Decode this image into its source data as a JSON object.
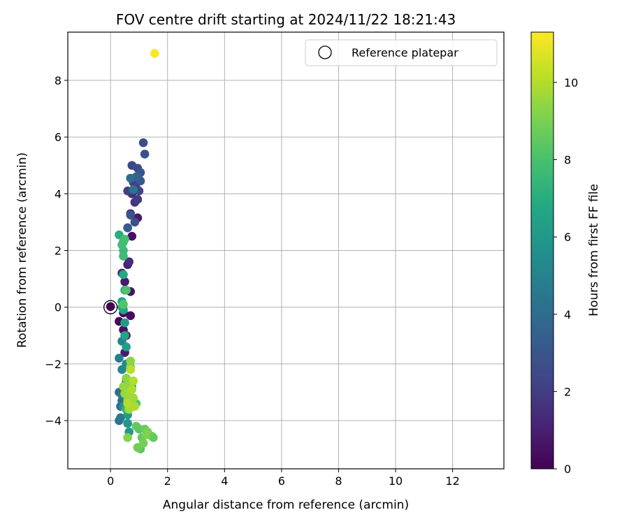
{
  "chart_data": {
    "type": "scatter",
    "title": "FOV centre drift starting at 2024/11/22 18:21:43",
    "xlabel": "Angular distance from reference (arcmin)",
    "ylabel": "Rotation from reference (arcmin)",
    "xlim": [
      -1.5,
      13.8
    ],
    "ylim": [
      -5.7,
      9.7
    ],
    "xticks": [
      0,
      2,
      4,
      6,
      8,
      10,
      12
    ],
    "yticks": [
      -4,
      -2,
      0,
      2,
      4,
      6,
      8
    ],
    "grid": true,
    "legend": {
      "position": "top-right",
      "entries": [
        "Reference platepar"
      ]
    },
    "colorbar": {
      "label": "Hours from first FF file",
      "colormap": "viridis",
      "range": [
        0,
        11.3
      ],
      "ticks": [
        0,
        2,
        4,
        6,
        8,
        10
      ]
    },
    "reference_point": {
      "x": 0,
      "y": 0
    },
    "points": [
      {
        "x": 0.0,
        "y": 0.02,
        "c": 0.0
      },
      {
        "x": 0.3,
        "y": -0.5,
        "c": 0.3
      },
      {
        "x": 0.45,
        "y": -0.8,
        "c": 0.5
      },
      {
        "x": 0.55,
        "y": -1.0,
        "c": 0.7
      },
      {
        "x": 0.5,
        "y": -1.6,
        "c": 0.9
      },
      {
        "x": 0.7,
        "y": -0.3,
        "c": 0.4
      },
      {
        "x": 0.7,
        "y": 0.55,
        "c": 0.6
      },
      {
        "x": 0.5,
        "y": 0.9,
        "c": 0.8
      },
      {
        "x": 0.45,
        "y": -0.2,
        "c": 0.2
      },
      {
        "x": 0.75,
        "y": 2.5,
        "c": 0.5
      },
      {
        "x": 0.95,
        "y": 3.15,
        "c": 0.8
      },
      {
        "x": 0.6,
        "y": 1.5,
        "c": 1.0
      },
      {
        "x": 0.4,
        "y": 1.2,
        "c": 1.2
      },
      {
        "x": 0.65,
        "y": 1.6,
        "c": 1.4
      },
      {
        "x": 0.6,
        "y": 2.8,
        "c": 1.3
      },
      {
        "x": 0.7,
        "y": 3.3,
        "c": 1.5
      },
      {
        "x": 0.75,
        "y": 4.0,
        "c": 1.6
      },
      {
        "x": 0.85,
        "y": 3.7,
        "c": 1.7
      },
      {
        "x": 0.9,
        "y": 4.2,
        "c": 1.8
      },
      {
        "x": 0.95,
        "y": 3.8,
        "c": 1.9
      },
      {
        "x": 1.0,
        "y": 4.5,
        "c": 2.0
      },
      {
        "x": 0.6,
        "y": 4.1,
        "c": 2.1
      },
      {
        "x": 0.8,
        "y": 4.4,
        "c": 2.2
      },
      {
        "x": 1.0,
        "y": 4.1,
        "c": 2.3
      },
      {
        "x": 0.75,
        "y": 5.0,
        "c": 2.4
      },
      {
        "x": 0.95,
        "y": 4.9,
        "c": 2.5
      },
      {
        "x": 1.15,
        "y": 5.8,
        "c": 2.6
      },
      {
        "x": 1.2,
        "y": 5.4,
        "c": 2.8
      },
      {
        "x": 1.05,
        "y": 4.75,
        "c": 2.9
      },
      {
        "x": 1.05,
        "y": 4.45,
        "c": 3.2
      },
      {
        "x": 0.7,
        "y": 3.25,
        "c": 3.0
      },
      {
        "x": 0.6,
        "y": 2.8,
        "c": 3.3
      },
      {
        "x": 0.85,
        "y": 3.0,
        "c": 2.7
      },
      {
        "x": 0.9,
        "y": 4.6,
        "c": 3.5
      },
      {
        "x": 0.7,
        "y": 4.55,
        "c": 4.0
      },
      {
        "x": 0.8,
        "y": 4.15,
        "c": 4.3
      },
      {
        "x": 0.35,
        "y": -3.5,
        "c": 3.8
      },
      {
        "x": 0.3,
        "y": -3.0,
        "c": 4.0
      },
      {
        "x": 0.4,
        "y": -3.3,
        "c": 4.1
      },
      {
        "x": 0.3,
        "y": -4.0,
        "c": 4.3
      },
      {
        "x": 0.35,
        "y": -3.9,
        "c": 4.5
      },
      {
        "x": 0.4,
        "y": -3.1,
        "c": 4.6
      },
      {
        "x": 0.3,
        "y": -1.8,
        "c": 4.8
      },
      {
        "x": 0.4,
        "y": -1.2,
        "c": 5.0
      },
      {
        "x": 0.4,
        "y": -2.2,
        "c": 5.2
      },
      {
        "x": 0.55,
        "y": -2.0,
        "c": 5.4
      },
      {
        "x": 0.55,
        "y": -2.6,
        "c": 5.5
      },
      {
        "x": 0.5,
        "y": -2.8,
        "c": 5.6
      },
      {
        "x": 0.45,
        "y": -3.5,
        "c": 5.7
      },
      {
        "x": 0.6,
        "y": -4.1,
        "c": 5.9
      },
      {
        "x": 0.65,
        "y": -4.4,
        "c": 6.0
      },
      {
        "x": 0.6,
        "y": -3.8,
        "c": 6.1
      },
      {
        "x": 0.5,
        "y": -0.55,
        "c": 6.2
      },
      {
        "x": 0.55,
        "y": -1.4,
        "c": 6.3
      },
      {
        "x": 0.45,
        "y": -0.1,
        "c": 6.4
      },
      {
        "x": 0.5,
        "y": -1.0,
        "c": 6.5
      },
      {
        "x": 0.5,
        "y": 0.6,
        "c": 6.6
      },
      {
        "x": 0.4,
        "y": 0.2,
        "c": 6.7
      },
      {
        "x": 0.45,
        "y": 1.15,
        "c": 6.8
      },
      {
        "x": 0.4,
        "y": 0.0,
        "c": 6.9
      },
      {
        "x": 0.3,
        "y": 2.55,
        "c": 7.0
      },
      {
        "x": 0.45,
        "y": 2.3,
        "c": 7.2
      },
      {
        "x": 0.55,
        "y": -3.1,
        "c": 7.1
      },
      {
        "x": 0.75,
        "y": -2.8,
        "c": 7.3
      },
      {
        "x": 0.55,
        "y": -3.6,
        "c": 7.4
      },
      {
        "x": 0.45,
        "y": 2.0,
        "c": 7.6
      },
      {
        "x": 0.45,
        "y": 1.8,
        "c": 7.7
      },
      {
        "x": 0.4,
        "y": 2.2,
        "c": 7.8
      },
      {
        "x": 0.5,
        "y": 2.4,
        "c": 7.9
      },
      {
        "x": 0.55,
        "y": 0.6,
        "c": 8.1
      },
      {
        "x": 0.45,
        "y": 0.1,
        "c": 8.2
      },
      {
        "x": 0.8,
        "y": -3.3,
        "c": 8.0
      },
      {
        "x": 0.9,
        "y": -3.4,
        "c": 8.2
      },
      {
        "x": 1.0,
        "y": -4.3,
        "c": 8.3
      },
      {
        "x": 1.05,
        "y": -5.0,
        "c": 8.4
      },
      {
        "x": 0.9,
        "y": -4.2,
        "c": 8.5
      },
      {
        "x": 1.1,
        "y": -4.6,
        "c": 8.6
      },
      {
        "x": 1.2,
        "y": -4.3,
        "c": 8.7
      },
      {
        "x": 0.95,
        "y": -4.95,
        "c": 8.8
      },
      {
        "x": 1.15,
        "y": -4.8,
        "c": 8.9
      },
      {
        "x": 1.3,
        "y": -4.4,
        "c": 9.0
      },
      {
        "x": 1.45,
        "y": -4.55,
        "c": 9.0
      },
      {
        "x": 1.5,
        "y": -4.6,
        "c": 8.6
      },
      {
        "x": 1.25,
        "y": -4.5,
        "c": 9.1
      },
      {
        "x": 0.6,
        "y": -4.6,
        "c": 9.2
      },
      {
        "x": 0.7,
        "y": -1.9,
        "c": 9.3
      },
      {
        "x": 0.7,
        "y": -2.1,
        "c": 9.3
      },
      {
        "x": 0.55,
        "y": -2.5,
        "c": 9.4
      },
      {
        "x": 0.65,
        "y": -2.7,
        "c": 9.4
      },
      {
        "x": 0.45,
        "y": -2.8,
        "c": 9.5
      },
      {
        "x": 0.5,
        "y": -3.05,
        "c": 9.5
      },
      {
        "x": 0.6,
        "y": -3.3,
        "c": 9.6
      },
      {
        "x": 0.75,
        "y": -3.4,
        "c": 9.6
      },
      {
        "x": 0.65,
        "y": -3.0,
        "c": 9.7
      },
      {
        "x": 0.8,
        "y": -3.2,
        "c": 9.7
      },
      {
        "x": 0.7,
        "y": -3.5,
        "c": 9.8
      },
      {
        "x": 0.65,
        "y": -3.6,
        "c": 9.8
      },
      {
        "x": 0.85,
        "y": -3.5,
        "c": 9.9
      },
      {
        "x": 0.75,
        "y": -2.9,
        "c": 9.9
      },
      {
        "x": 0.6,
        "y": -3.4,
        "c": 10.0
      },
      {
        "x": 0.8,
        "y": -2.6,
        "c": 10.0
      },
      {
        "x": 0.7,
        "y": -2.2,
        "c": 10.1
      },
      {
        "x": 1.55,
        "y": 8.95,
        "c": 11.3
      }
    ]
  }
}
